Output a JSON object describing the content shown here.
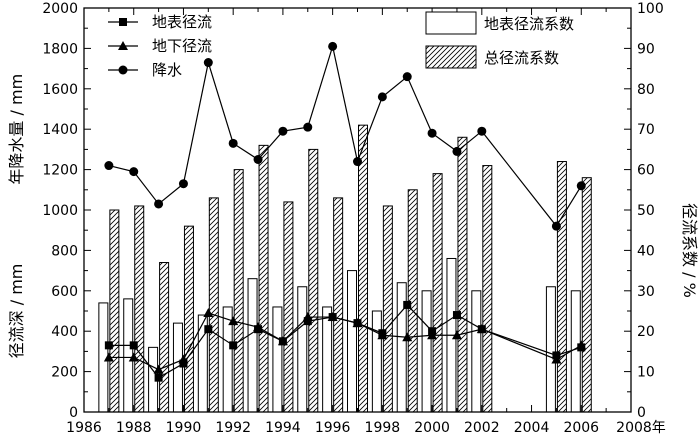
{
  "chart_data": {
    "type": "bar+line",
    "x": [
      1987,
      1988,
      1989,
      1990,
      1991,
      1992,
      1993,
      1994,
      1995,
      1996,
      1997,
      1998,
      1999,
      2000,
      2001,
      2002,
      2005,
      2006
    ],
    "x_axis": {
      "range": [
        1986,
        2008
      ],
      "ticks": [
        1986,
        1988,
        1990,
        1992,
        1994,
        1996,
        1998,
        2000,
        2002,
        2004,
        2006
      ],
      "last_tick_label": "2008年"
    },
    "left_axis": {
      "range": [
        0,
        2000
      ],
      "ticks": [
        0,
        200,
        400,
        600,
        800,
        1000,
        1200,
        1400,
        1600,
        1800,
        2000
      ],
      "label_top": "年降水量 / mm",
      "label_bottom": "径流深 / mm"
    },
    "right_axis": {
      "range": [
        0,
        100
      ],
      "ticks": [
        0,
        10,
        20,
        30,
        40,
        50,
        60,
        70,
        80,
        90,
        100
      ],
      "label": "径流系数 / %"
    },
    "bar_series": [
      {
        "name": "地表径流系数",
        "pattern": "white",
        "values": [
          27,
          28,
          16,
          22,
          24,
          26,
          33,
          26,
          31,
          26,
          35,
          25,
          32,
          30,
          38,
          30,
          31,
          30
        ]
      },
      {
        "name": "总径流系数",
        "pattern": "hatch",
        "values": [
          50,
          51,
          37,
          46,
          53,
          60,
          66,
          52,
          65,
          53,
          71,
          51,
          55,
          59,
          68,
          61,
          62,
          58
        ]
      }
    ],
    "line_series": [
      {
        "name": "地表径流",
        "marker": "square",
        "values": [
          330,
          330,
          170,
          240,
          410,
          330,
          410,
          350,
          450,
          470,
          440,
          390,
          530,
          400,
          480,
          410,
          280,
          320
        ]
      },
      {
        "name": "地下径流",
        "marker": "triangle",
        "values": [
          270,
          270,
          210,
          260,
          490,
          450,
          420,
          350,
          470,
          470,
          440,
          380,
          370,
          380,
          380,
          410,
          260,
          330
        ]
      },
      {
        "name": "降水",
        "marker": "circle",
        "values": [
          1220,
          1190,
          1030,
          1130,
          1730,
          1330,
          1250,
          1390,
          1410,
          1810,
          1240,
          1560,
          1660,
          1380,
          1290,
          1390,
          920,
          1120
        ]
      }
    ]
  }
}
